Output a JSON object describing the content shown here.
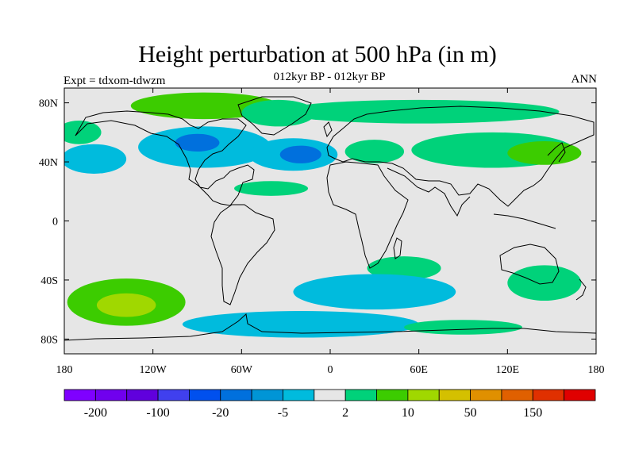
{
  "title": "Height perturbation at 500 hPa (in m)",
  "subtitle": "012kyr BP - 012kyr BP",
  "expt_label": "Expt = tdxom-tdwzm",
  "season": "ANN",
  "map": {
    "projection": "cylindrical equidistant",
    "background": "#e6e6e6",
    "lon_range": [
      -180,
      180
    ],
    "lat_range": [
      -90,
      90
    ],
    "lat_ticks": [
      {
        "value": 80,
        "label": "80N"
      },
      {
        "value": 40,
        "label": "40N"
      },
      {
        "value": 0,
        "label": "0"
      },
      {
        "value": -40,
        "label": "40S"
      },
      {
        "value": -80,
        "label": "80S"
      }
    ],
    "lon_ticks": [
      {
        "value": -180,
        "label": "180"
      },
      {
        "value": -120,
        "label": "120W"
      },
      {
        "value": -60,
        "label": "60W"
      },
      {
        "value": 0,
        "label": "0"
      },
      {
        "value": 60,
        "label": "60E"
      },
      {
        "value": 120,
        "label": "120E"
      },
      {
        "value": 180,
        "label": "180"
      }
    ],
    "anomaly_regions": [
      {
        "name": "arctic-greenland",
        "lon": -85,
        "lat": 78,
        "rlon": 50,
        "rlat": 9,
        "level": 10
      },
      {
        "name": "north-atlantic",
        "lon": -35,
        "lat": 73,
        "rlon": 25,
        "rlat": 9,
        "level": 2
      },
      {
        "name": "siberia",
        "lon": 60,
        "lat": 74,
        "rlon": 95,
        "rlat": 8,
        "level": 2
      },
      {
        "name": "north-america",
        "lon": -85,
        "lat": 50,
        "rlon": 45,
        "rlat": 14,
        "level": -5
      },
      {
        "name": "canada-core",
        "lon": -90,
        "lat": 53,
        "rlon": 15,
        "rlat": 6,
        "level": -20
      },
      {
        "name": "north-pacific",
        "lon": -160,
        "lat": 42,
        "rlon": 22,
        "rlat": 10,
        "level": -5
      },
      {
        "name": "aleutian",
        "lon": -170,
        "lat": 60,
        "rlon": 15,
        "rlat": 8,
        "level": 2
      },
      {
        "name": "north-atlantic-low",
        "lon": -25,
        "lat": 45,
        "rlon": 30,
        "rlat": 11,
        "level": -5
      },
      {
        "name": "north-atlantic-core",
        "lon": -20,
        "lat": 45,
        "rlon": 14,
        "rlat": 6,
        "level": -20
      },
      {
        "name": "europe-ridge",
        "lon": 30,
        "lat": 47,
        "rlon": 20,
        "rlat": 8,
        "level": 2
      },
      {
        "name": "asia-high",
        "lon": 110,
        "lat": 48,
        "rlon": 55,
        "rlat": 12,
        "level": 2
      },
      {
        "name": "asia-high-core",
        "lon": 145,
        "lat": 46,
        "rlon": 25,
        "rlat": 8,
        "level": 10
      },
      {
        "name": "caribbean",
        "lon": -40,
        "lat": 22,
        "rlon": 25,
        "rlat": 5,
        "level": 2
      },
      {
        "name": "indian-ocean",
        "lon": 50,
        "lat": -32,
        "rlon": 25,
        "rlat": 8,
        "level": 2
      },
      {
        "name": "south-pacific",
        "lon": -138,
        "lat": -55,
        "rlon": 40,
        "rlat": 16,
        "level": 10
      },
      {
        "name": "south-pacific-core",
        "lon": -138,
        "lat": -57,
        "rlon": 20,
        "rlat": 8,
        "level": 50
      },
      {
        "name": "south-atlantic",
        "lon": 30,
        "lat": -48,
        "rlon": 55,
        "rlat": 12,
        "level": -5
      },
      {
        "name": "australia-south",
        "lon": 145,
        "lat": -42,
        "rlon": 25,
        "rlat": 12,
        "level": 2
      },
      {
        "name": "southern-ocean",
        "lon": -20,
        "lat": -70,
        "rlon": 80,
        "rlat": 9,
        "level": -5
      },
      {
        "name": "antarctica-coast",
        "lon": 90,
        "lat": -72,
        "rlon": 40,
        "rlat": 5,
        "level": 2
      }
    ]
  },
  "colorbar": {
    "colors": [
      "#7f00ff",
      "#7000ee",
      "#6000dd",
      "#4040ee",
      "#0050ee",
      "#0070dd",
      "#0095d6",
      "#00bbdd",
      "#e6e6e6",
      "#00d27a",
      "#3ccc00",
      "#a0d800",
      "#d4c000",
      "#e09000",
      "#e06000",
      "#e03000",
      "#e00000"
    ],
    "labels": [
      "-200",
      "-100",
      "-20",
      "-5",
      "2",
      "10",
      "50",
      "150"
    ]
  }
}
